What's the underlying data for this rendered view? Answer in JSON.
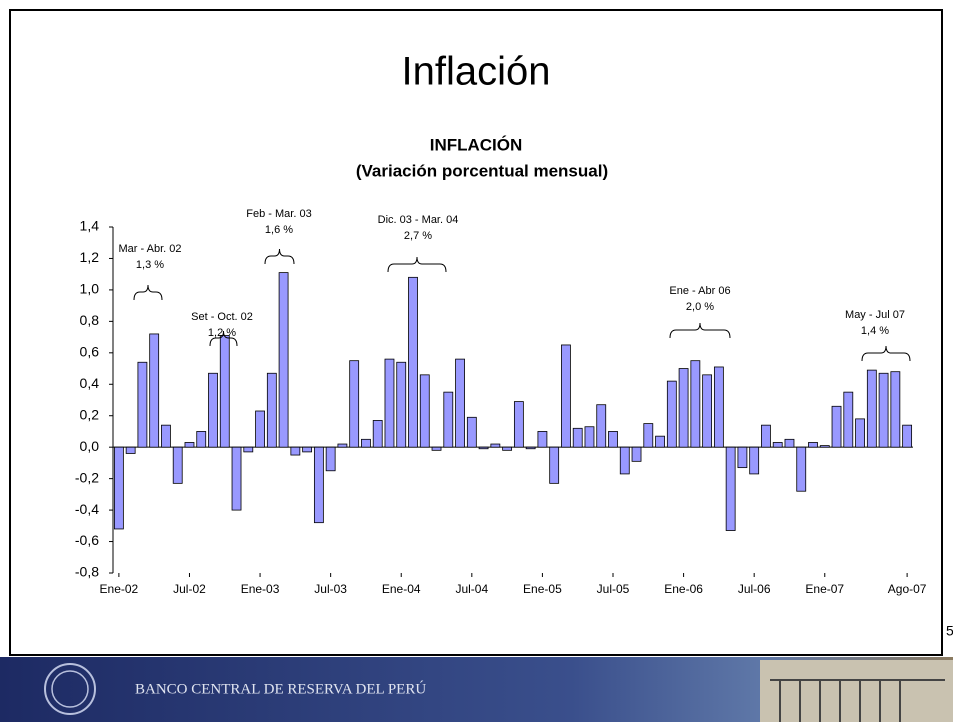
{
  "slide_title": "Inflación",
  "footer": "BANCO CENTRAL DE RESERVA DEL PERÚ",
  "page_number": "5",
  "chart_data": {
    "type": "bar",
    "title": "INFLACIÓN",
    "subtitle": "(Variación porcentual mensual)",
    "color": "#9999ff",
    "categories": [
      "Ene-02",
      null,
      null,
      null,
      null,
      null,
      "Jul-02",
      null,
      null,
      null,
      null,
      null,
      "Ene-03",
      null,
      null,
      null,
      null,
      null,
      "Jul-03",
      null,
      null,
      null,
      null,
      null,
      "Ene-04",
      null,
      null,
      null,
      null,
      null,
      "Jul-04",
      null,
      null,
      null,
      null,
      null,
      "Ene-05",
      null,
      null,
      null,
      null,
      null,
      "Jul-05",
      null,
      null,
      null,
      null,
      null,
      "Ene-06",
      null,
      null,
      null,
      null,
      null,
      "Jul-06",
      null,
      null,
      null,
      null,
      null,
      "Ene-07",
      null,
      null,
      null,
      null,
      null,
      null,
      "Ago-07"
    ],
    "values": [
      -0.52,
      -0.04,
      0.54,
      0.72,
      0.14,
      -0.23,
      0.03,
      0.1,
      0.47,
      0.71,
      -0.4,
      -0.03,
      0.23,
      0.47,
      1.11,
      -0.05,
      -0.03,
      -0.48,
      -0.15,
      0.02,
      0.55,
      0.05,
      0.17,
      0.56,
      0.54,
      1.08,
      0.46,
      -0.02,
      0.35,
      0.56,
      0.19,
      -0.01,
      0.02,
      -0.02,
      0.29,
      -0.01,
      0.1,
      -0.23,
      0.65,
      0.12,
      0.13,
      0.27,
      0.1,
      -0.17,
      -0.09,
      0.15,
      0.07,
      0.42,
      0.5,
      0.55,
      0.46,
      0.51,
      -0.53,
      -0.13,
      -0.17,
      0.14,
      0.03,
      0.05,
      -0.28,
      0.03,
      0.01,
      0.26,
      0.35,
      0.18,
      0.49,
      0.47,
      0.48,
      0.14
    ],
    "ylim": [
      -0.8,
      1.4
    ],
    "yticks": [
      {
        "value": -0.8,
        "label": "-0,8"
      },
      {
        "value": -0.6,
        "label": "-0,6"
      },
      {
        "value": -0.4,
        "label": "-0,4"
      },
      {
        "value": -0.2,
        "label": "-0,2"
      },
      {
        "value": 0,
        "label": "0,0"
      },
      {
        "value": 0.2,
        "label": "0,2"
      },
      {
        "value": 0.4,
        "label": "0,4"
      },
      {
        "value": 0.6,
        "label": "0,6"
      },
      {
        "value": 0.8,
        "label": "0,8"
      },
      {
        "value": 1.0,
        "label": "1,0"
      },
      {
        "value": 1.2,
        "label": "1,2"
      },
      {
        "value": 1.4,
        "label": "1,4"
      }
    ],
    "grid": false,
    "annotations": [
      [
        "Mar - Abr. 02",
        "1,3 %"
      ],
      [
        "Set - Oct. 02",
        "1,2 %"
      ],
      [
        "Feb - Mar. 03",
        "1,6 %"
      ],
      [
        "Dic. 03 - Mar. 04",
        "2,7 %"
      ],
      [
        "Ene - Abr 06",
        "2,0 %"
      ],
      [
        "May - Jul 07",
        "1,4 %"
      ]
    ]
  }
}
